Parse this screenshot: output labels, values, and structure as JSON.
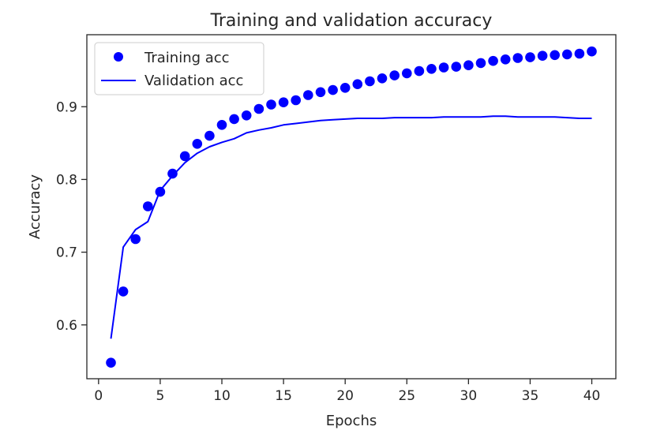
{
  "chart_data": {
    "type": "line",
    "title": "Training and validation accuracy",
    "xlabel": "Epochs",
    "ylabel": "Accuracy",
    "xlim": [
      -0.95,
      41.95
    ],
    "ylim": [
      0.526,
      0.999
    ],
    "xticks": [
      0,
      5,
      10,
      15,
      20,
      25,
      30,
      35,
      40
    ],
    "yticks": [
      0.6,
      0.7,
      0.8,
      0.9
    ],
    "grid": false,
    "legend": "top-left",
    "series": [
      {
        "name": "Training acc",
        "style": "scatter",
        "color": "#0000ff",
        "x": [
          1,
          2,
          3,
          4,
          5,
          6,
          7,
          8,
          9,
          10,
          11,
          12,
          13,
          14,
          15,
          16,
          17,
          18,
          19,
          20,
          21,
          22,
          23,
          24,
          25,
          26,
          27,
          28,
          29,
          30,
          31,
          32,
          33,
          34,
          35,
          36,
          37,
          38,
          39,
          40
        ],
        "y": [
          0.548,
          0.646,
          0.718,
          0.763,
          0.783,
          0.808,
          0.832,
          0.849,
          0.86,
          0.875,
          0.883,
          0.888,
          0.897,
          0.903,
          0.906,
          0.909,
          0.916,
          0.92,
          0.923,
          0.926,
          0.931,
          0.935,
          0.939,
          0.943,
          0.946,
          0.949,
          0.952,
          0.954,
          0.955,
          0.957,
          0.96,
          0.963,
          0.965,
          0.967,
          0.968,
          0.97,
          0.971,
          0.972,
          0.973,
          0.976
        ]
      },
      {
        "name": "Validation acc",
        "style": "line",
        "color": "#0000ff",
        "x": [
          1,
          2,
          3,
          4,
          5,
          6,
          7,
          8,
          9,
          10,
          11,
          12,
          13,
          14,
          15,
          16,
          17,
          18,
          19,
          20,
          21,
          22,
          23,
          24,
          25,
          26,
          27,
          28,
          29,
          30,
          31,
          32,
          33,
          34,
          35,
          36,
          37,
          38,
          39,
          40
        ],
        "y": [
          0.581,
          0.707,
          0.731,
          0.742,
          0.785,
          0.805,
          0.823,
          0.836,
          0.845,
          0.851,
          0.856,
          0.864,
          0.868,
          0.871,
          0.875,
          0.877,
          0.879,
          0.881,
          0.882,
          0.883,
          0.884,
          0.884,
          0.884,
          0.885,
          0.885,
          0.885,
          0.885,
          0.886,
          0.886,
          0.886,
          0.886,
          0.887,
          0.887,
          0.886,
          0.886,
          0.886,
          0.886,
          0.885,
          0.884,
          0.884
        ]
      }
    ]
  }
}
